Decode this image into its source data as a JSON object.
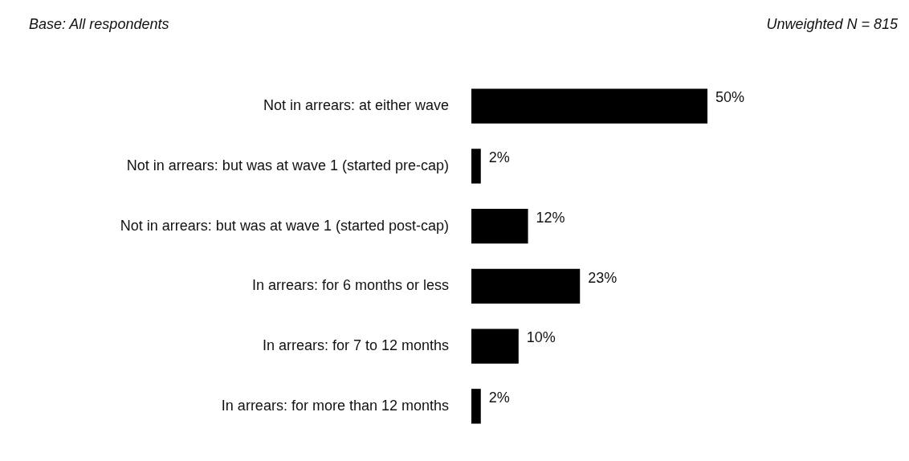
{
  "chart_data": {
    "type": "bar",
    "orientation": "horizontal",
    "annotations": [
      "Base: All respondents",
      "Unweighted N = 815"
    ],
    "categories": [
      "Not in arrears: at either wave",
      "Not in arrears: but was at wave 1 (started pre-cap)",
      "Not in arrears: but was at wave 1 (started post-cap)",
      "In arrears: for 6 months or less",
      "In arrears: for 7 to 12 months",
      "In arrears: for more than 12 months"
    ],
    "values": [
      50,
      2,
      12,
      23,
      10,
      2
    ],
    "value_labels": [
      "50%",
      "2%",
      "12%",
      "23%",
      "10%",
      "2%"
    ],
    "color": "#000000",
    "tick_labels": "y",
    "legend": false
  }
}
